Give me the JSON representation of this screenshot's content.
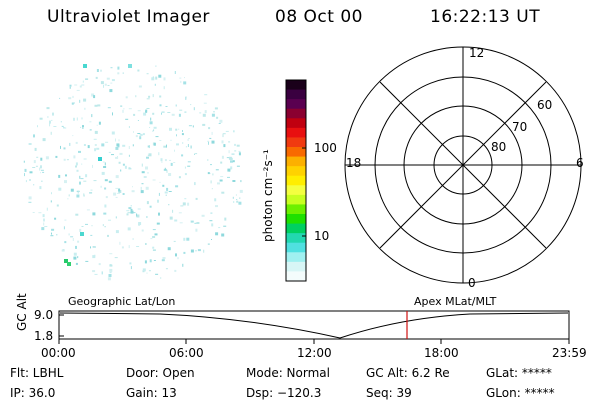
{
  "header": {
    "instrument": "Ultraviolet Imager",
    "date": "08 Oct 00",
    "time": "16:22:13 UT"
  },
  "colorbar": {
    "unit_label": "photon cm⁻²s⁻¹",
    "ticks": [
      "100",
      "10"
    ],
    "colors": [
      "#1a001a",
      "#3a0040",
      "#5a0050",
      "#8a0030",
      "#c00010",
      "#e81010",
      "#f03a10",
      "#f86a00",
      "#fcb000",
      "#ffd200",
      "#ffee00",
      "#f4ff40",
      "#c8ff20",
      "#6cf000",
      "#1ee000",
      "#00d060",
      "#22d8b0",
      "#50e0e0",
      "#a0f0f0",
      "#d8f6f6",
      "#f4fcfc"
    ]
  },
  "polar_grid": {
    "mlt_labels": {
      "top": "12",
      "left": "18",
      "right": "6",
      "bottom": "0"
    },
    "lat_labels": [
      "60",
      "70",
      "80"
    ]
  },
  "orbit_panel": {
    "y_label": "GC Alt",
    "y_ticks": [
      "9.0",
      "1.8"
    ],
    "left_label": "Geographic Lat/Lon",
    "right_label": "Apex MLat/MLT",
    "time_ticks": [
      "00:00",
      "06:00",
      "12:00",
      "18:00",
      "23:59"
    ],
    "marker_color": "#d01010"
  },
  "status": {
    "flt": "Flt: LBHL",
    "ip": "IP: 36.0",
    "door": "Door: Open",
    "gain": "Gain: 13",
    "mode": "Mode: Normal",
    "dsp": "Dsp: −120.3",
    "gc_alt": "GC Alt: 6.2 Re",
    "seq": "Seq: 39",
    "glat": "GLat: *****",
    "glon": "GLon: *****"
  }
}
